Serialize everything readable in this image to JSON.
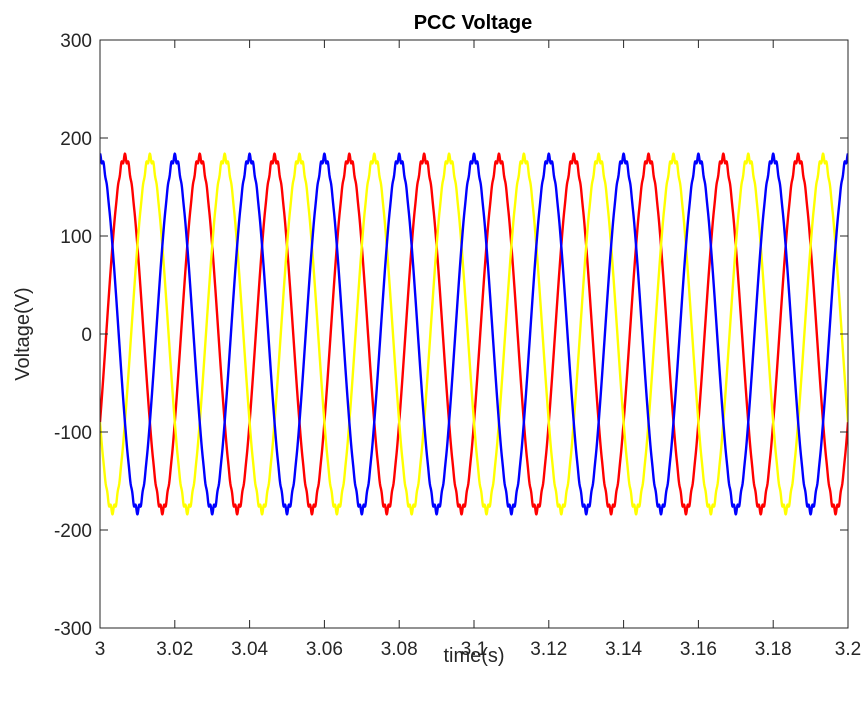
{
  "chart_data": {
    "type": "line",
    "title": "PCC Voltage",
    "xlabel": "time(s)",
    "ylabel": "Voltage(V)",
    "xlim": [
      3,
      3.2
    ],
    "ylim": [
      -300,
      300
    ],
    "xticks": [
      3,
      3.02,
      3.04,
      3.06,
      3.08,
      3.1,
      3.12,
      3.14,
      3.16,
      3.18,
      3.2
    ],
    "xtick_labels": [
      "3",
      "3.02",
      "3.04",
      "3.06",
      "3.08",
      "3.1",
      "3.12",
      "3.14",
      "3.16",
      "3.18",
      "3.2"
    ],
    "yticks": [
      -300,
      -200,
      -100,
      0,
      100,
      200,
      300
    ],
    "ytick_labels": [
      "-300",
      "-200",
      "-100",
      "0",
      "100",
      "200",
      "300"
    ],
    "grid": false,
    "frequency_hz": 50,
    "amplitude_v": 180,
    "series": [
      {
        "color": "#ff0000",
        "phase_deg": -30,
        "amplitude": 180
      },
      {
        "color": "#ffff00",
        "phase_deg": -150,
        "amplitude": 180
      },
      {
        "color": "#0000ff",
        "phase_deg": 90,
        "amplitude": 180
      }
    ]
  }
}
